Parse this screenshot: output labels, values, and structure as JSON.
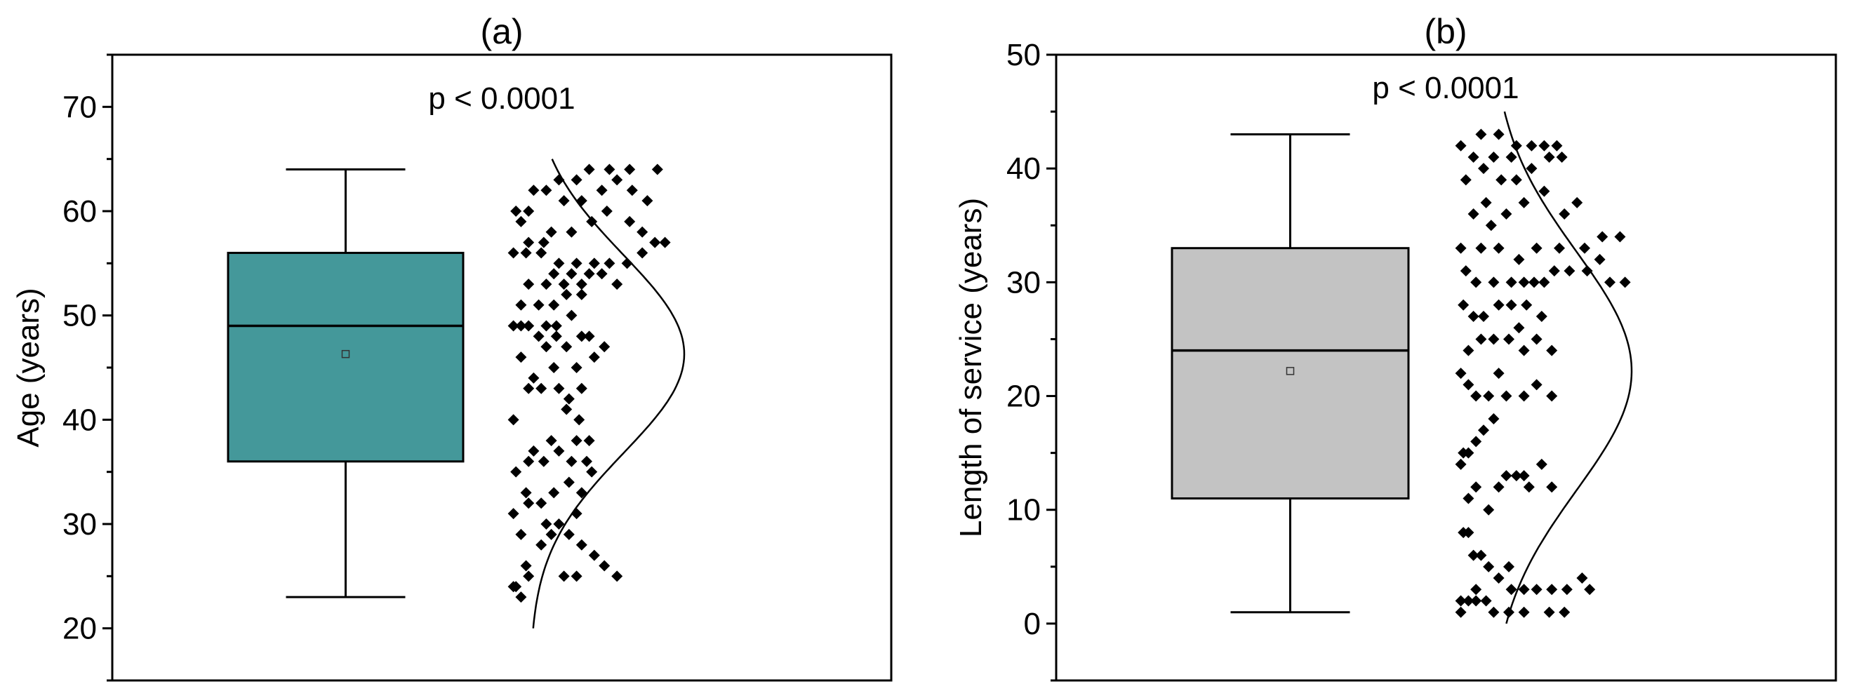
{
  "chart_data": [
    {
      "type": "box",
      "title": "(a)",
      "ylabel": "Age (years)",
      "ylim": [
        15,
        75
      ],
      "yticks": [
        20,
        30,
        40,
        50,
        60,
        70
      ],
      "grid": false,
      "annotation": "p < 0.0001",
      "box": {
        "min": 23,
        "q1": 36,
        "median": 49,
        "q3": 56,
        "max": 64,
        "mean": 46.3,
        "color": "#44989a"
      },
      "normal_curve": {
        "mean": 46.3,
        "sd": 9.5,
        "from": 20,
        "to": 65
      },
      "points": [
        [
          0.07,
          24
        ],
        [
          0.09,
          23
        ],
        [
          0.12,
          25
        ],
        [
          0.06,
          24
        ],
        [
          0.11,
          26
        ],
        [
          0.26,
          25
        ],
        [
          0.31,
          25
        ],
        [
          0.33,
          28
        ],
        [
          0.38,
          27
        ],
        [
          0.42,
          26
        ],
        [
          0.47,
          25
        ],
        [
          0.09,
          29
        ],
        [
          0.17,
          28
        ],
        [
          0.21,
          29
        ],
        [
          0.24,
          30
        ],
        [
          0.28,
          29
        ],
        [
          0.31,
          31
        ],
        [
          0.19,
          30
        ],
        [
          0.06,
          31
        ],
        [
          0.12,
          32
        ],
        [
          0.17,
          32
        ],
        [
          0.22,
          33
        ],
        [
          0.11,
          33
        ],
        [
          0.28,
          34
        ],
        [
          0.33,
          33
        ],
        [
          0.37,
          35
        ],
        [
          0.07,
          35
        ],
        [
          0.12,
          36
        ],
        [
          0.18,
          36
        ],
        [
          0.24,
          37
        ],
        [
          0.29,
          36
        ],
        [
          0.35,
          36
        ],
        [
          0.14,
          37
        ],
        [
          0.21,
          38
        ],
        [
          0.31,
          38
        ],
        [
          0.36,
          38
        ],
        [
          0.06,
          40
        ],
        [
          0.27,
          41
        ],
        [
          0.32,
          40
        ],
        [
          0.12,
          43
        ],
        [
          0.17,
          43
        ],
        [
          0.24,
          43
        ],
        [
          0.28,
          42
        ],
        [
          0.33,
          43
        ],
        [
          0.14,
          44
        ],
        [
          0.22,
          45
        ],
        [
          0.31,
          45
        ],
        [
          0.38,
          46
        ],
        [
          0.09,
          46
        ],
        [
          0.19,
          47
        ],
        [
          0.27,
          47
        ],
        [
          0.36,
          48
        ],
        [
          0.42,
          47
        ],
        [
          0.16,
          48
        ],
        [
          0.23,
          48
        ],
        [
          0.33,
          48
        ],
        [
          0.06,
          49
        ],
        [
          0.09,
          49
        ],
        [
          0.12,
          49
        ],
        [
          0.19,
          49
        ],
        [
          0.23,
          49
        ],
        [
          0.29,
          50
        ],
        [
          0.09,
          51
        ],
        [
          0.16,
          51
        ],
        [
          0.22,
          51
        ],
        [
          0.27,
          52
        ],
        [
          0.33,
          52
        ],
        [
          0.12,
          53
        ],
        [
          0.19,
          53
        ],
        [
          0.26,
          53
        ],
        [
          0.33,
          53
        ],
        [
          0.41,
          54
        ],
        [
          0.47,
          53
        ],
        [
          0.22,
          54
        ],
        [
          0.29,
          54
        ],
        [
          0.36,
          54
        ],
        [
          0.06,
          56
        ],
        [
          0.11,
          56
        ],
        [
          0.17,
          56
        ],
        [
          0.24,
          55
        ],
        [
          0.31,
          55
        ],
        [
          0.38,
          55
        ],
        [
          0.44,
          55
        ],
        [
          0.51,
          55
        ],
        [
          0.57,
          56
        ],
        [
          0.12,
          57
        ],
        [
          0.18,
          57
        ],
        [
          0.09,
          59
        ],
        [
          0.12,
          60
        ],
        [
          0.07,
          60
        ],
        [
          0.21,
          58
        ],
        [
          0.29,
          58
        ],
        [
          0.37,
          59
        ],
        [
          0.43,
          60
        ],
        [
          0.52,
          59
        ],
        [
          0.57,
          58
        ],
        [
          0.62,
          57
        ],
        [
          0.66,
          57
        ],
        [
          0.14,
          62
        ],
        [
          0.19,
          62
        ],
        [
          0.26,
          61
        ],
        [
          0.33,
          61
        ],
        [
          0.41,
          62
        ],
        [
          0.47,
          63
        ],
        [
          0.53,
          62
        ],
        [
          0.59,
          61
        ],
        [
          0.24,
          63
        ],
        [
          0.31,
          63
        ],
        [
          0.36,
          64
        ],
        [
          0.44,
          64
        ],
        [
          0.52,
          64
        ],
        [
          0.63,
          64
        ]
      ]
    },
    {
      "type": "box",
      "title": "(b)",
      "ylabel": "Length of service (years)",
      "ylim": [
        -5,
        50
      ],
      "yticks": [
        0,
        10,
        20,
        30,
        40,
        50
      ],
      "grid": false,
      "annotation": "p < 0.0001",
      "box": {
        "min": 1,
        "q1": 11,
        "median": 24,
        "q3": 33,
        "max": 43,
        "mean": 22.2,
        "color": "#c3c3c3"
      },
      "normal_curve": {
        "mean": 22.2,
        "sd": 10.5,
        "from": 0,
        "to": 45
      },
      "points": [
        [
          0.06,
          1
        ],
        [
          0.09,
          2
        ],
        [
          0.12,
          2
        ],
        [
          0.16,
          2
        ],
        [
          0.19,
          1
        ],
        [
          0.25,
          1
        ],
        [
          0.31,
          1
        ],
        [
          0.41,
          1
        ],
        [
          0.47,
          1
        ],
        [
          0.26,
          3
        ],
        [
          0.31,
          3
        ],
        [
          0.36,
          3
        ],
        [
          0.42,
          3
        ],
        [
          0.48,
          3
        ],
        [
          0.54,
          4
        ],
        [
          0.57,
          3
        ],
        [
          0.06,
          2
        ],
        [
          0.12,
          3
        ],
        [
          0.07,
          8
        ],
        [
          0.11,
          6
        ],
        [
          0.14,
          6
        ],
        [
          0.17,
          5
        ],
        [
          0.21,
          4
        ],
        [
          0.25,
          5
        ],
        [
          0.09,
          8
        ],
        [
          0.09,
          11
        ],
        [
          0.12,
          12
        ],
        [
          0.17,
          10
        ],
        [
          0.21,
          12
        ],
        [
          0.24,
          13
        ],
        [
          0.28,
          13
        ],
        [
          0.33,
          12
        ],
        [
          0.38,
          14
        ],
        [
          0.42,
          12
        ],
        [
          0.31,
          13
        ],
        [
          0.06,
          14
        ],
        [
          0.09,
          15
        ],
        [
          0.12,
          16
        ],
        [
          0.15,
          17
        ],
        [
          0.19,
          18
        ],
        [
          0.07,
          15
        ],
        [
          0.06,
          22
        ],
        [
          0.09,
          21
        ],
        [
          0.12,
          20
        ],
        [
          0.17,
          20
        ],
        [
          0.24,
          20
        ],
        [
          0.31,
          20
        ],
        [
          0.36,
          21
        ],
        [
          0.42,
          20
        ],
        [
          0.21,
          22
        ],
        [
          0.09,
          24
        ],
        [
          0.14,
          25
        ],
        [
          0.19,
          25
        ],
        [
          0.25,
          25
        ],
        [
          0.31,
          24
        ],
        [
          0.36,
          25
        ],
        [
          0.42,
          24
        ],
        [
          0.29,
          26
        ],
        [
          0.07,
          28
        ],
        [
          0.11,
          27
        ],
        [
          0.15,
          27
        ],
        [
          0.21,
          28
        ],
        [
          0.26,
          28
        ],
        [
          0.32,
          28
        ],
        [
          0.38,
          27
        ],
        [
          0.12,
          30
        ],
        [
          0.19,
          30
        ],
        [
          0.26,
          30
        ],
        [
          0.31,
          30
        ],
        [
          0.35,
          30
        ],
        [
          0.39,
          30
        ],
        [
          0.43,
          31
        ],
        [
          0.49,
          31
        ],
        [
          0.56,
          31
        ],
        [
          0.61,
          32
        ],
        [
          0.65,
          30
        ],
        [
          0.71,
          30
        ],
        [
          0.08,
          31
        ],
        [
          0.06,
          33
        ],
        [
          0.14,
          33
        ],
        [
          0.21,
          33
        ],
        [
          0.29,
          32
        ],
        [
          0.36,
          33
        ],
        [
          0.45,
          33
        ],
        [
          0.55,
          33
        ],
        [
          0.62,
          34
        ],
        [
          0.69,
          34
        ],
        [
          0.11,
          36
        ],
        [
          0.16,
          37
        ],
        [
          0.24,
          36
        ],
        [
          0.31,
          37
        ],
        [
          0.39,
          38
        ],
        [
          0.47,
          36
        ],
        [
          0.52,
          37
        ],
        [
          0.18,
          35
        ],
        [
          0.08,
          39
        ],
        [
          0.15,
          40
        ],
        [
          0.22,
          39
        ],
        [
          0.28,
          39
        ],
        [
          0.34,
          40
        ],
        [
          0.41,
          41
        ],
        [
          0.46,
          41
        ],
        [
          0.06,
          42
        ],
        [
          0.14,
          43
        ],
        [
          0.21,
          43
        ],
        [
          0.28,
          42
        ],
        [
          0.34,
          42
        ],
        [
          0.39,
          42
        ],
        [
          0.44,
          42
        ],
        [
          0.11,
          41
        ],
        [
          0.19,
          41
        ],
        [
          0.26,
          41
        ]
      ]
    }
  ]
}
